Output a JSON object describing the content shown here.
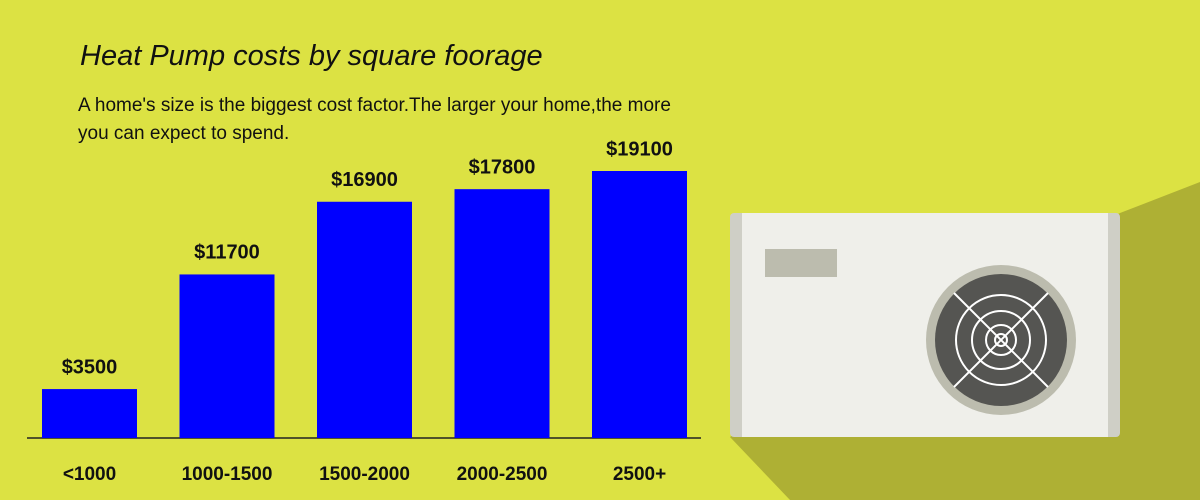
{
  "chart_data": {
    "type": "bar",
    "title": "Heat Pump costs by square foorage",
    "subtitle": "A home's size is the biggest cost factor.The larger your home,the more you can expect to spend.",
    "categories": [
      "<1000",
      "1000-1500",
      "1500-2000",
      "2000-2500",
      "2500+"
    ],
    "values": [
      3500,
      11700,
      16900,
      17800,
      19100
    ],
    "value_labels": [
      "$3500",
      "$11700",
      "$16900",
      "$17800",
      "$19100"
    ],
    "color": "#0000ff"
  }
}
